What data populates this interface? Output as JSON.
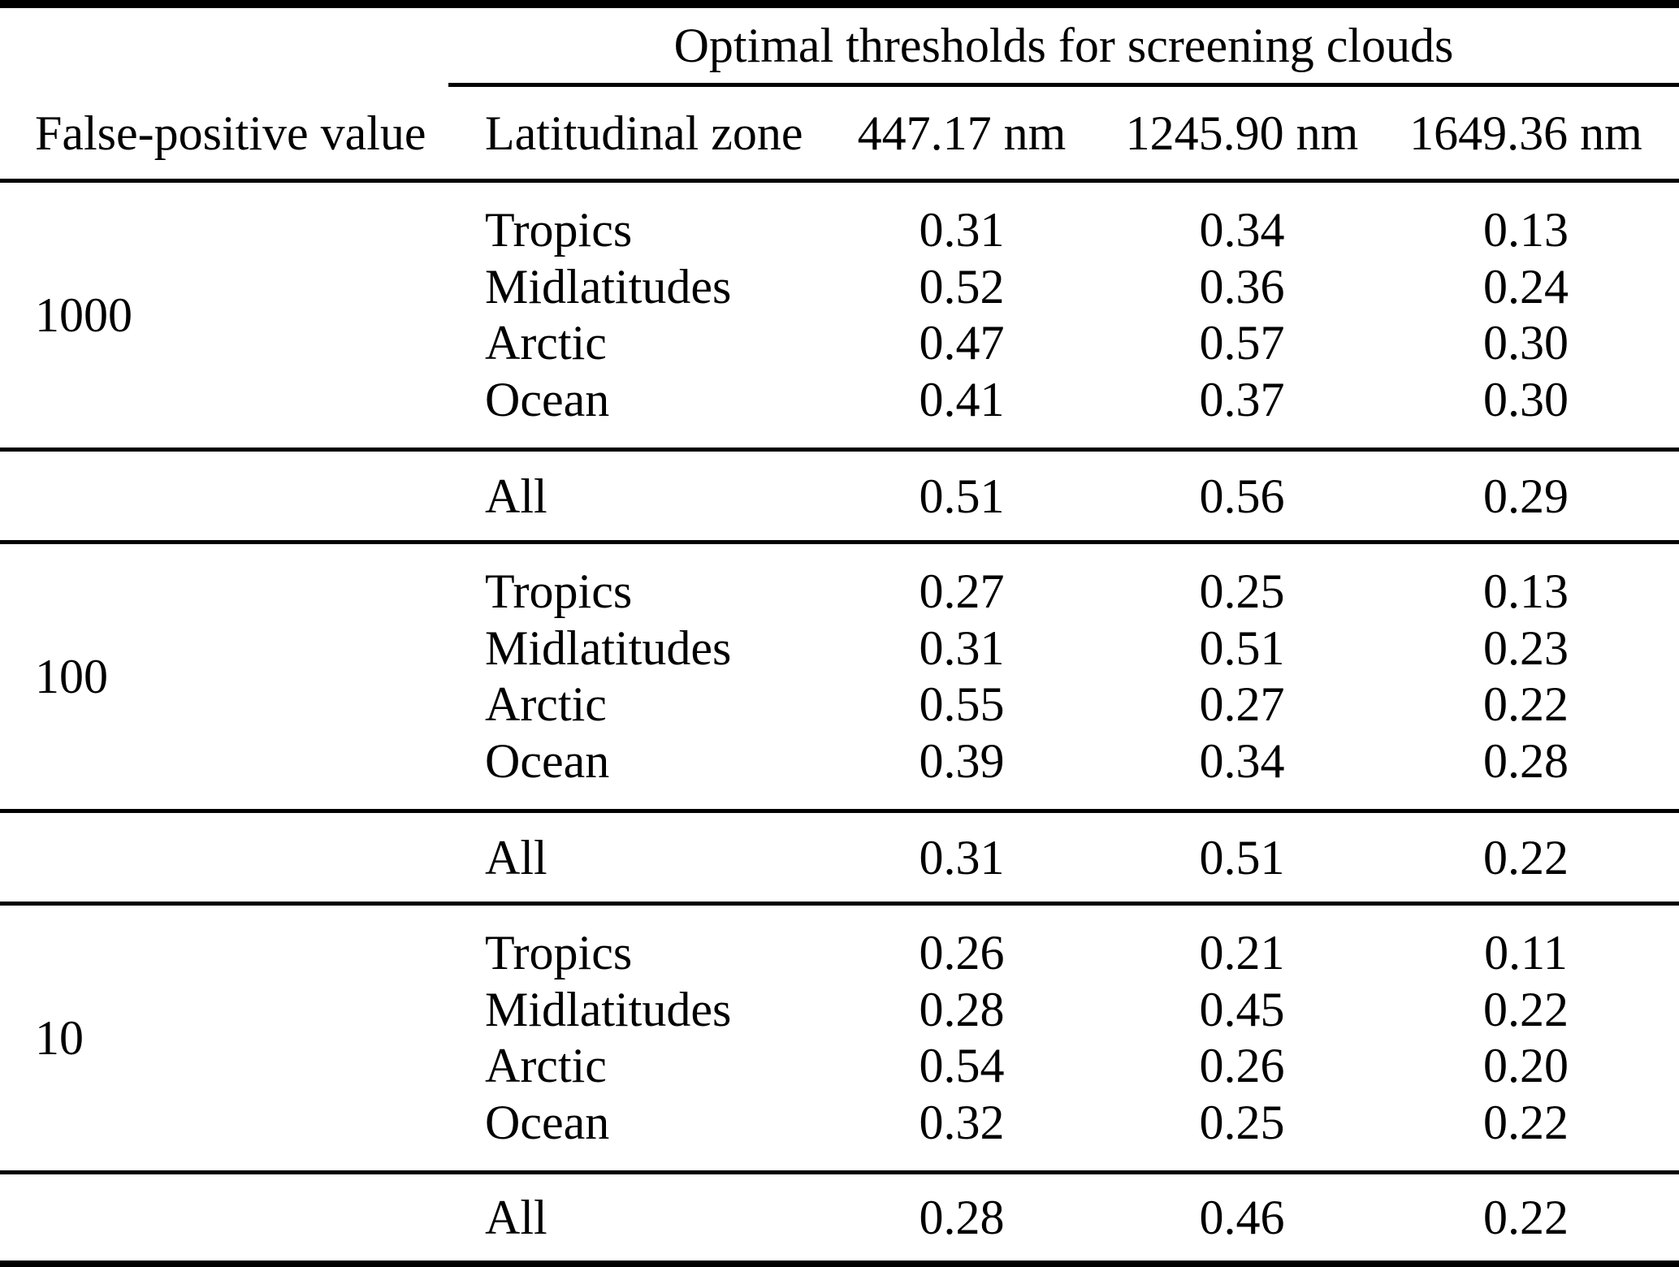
{
  "table": {
    "span_header": "Optimal thresholds for screening clouds",
    "columns": {
      "false_positive": "False-positive value",
      "zone": "Latitudinal zone",
      "wl1": "447.17 nm",
      "wl2": "1245.90 nm",
      "wl3": "1649.36 nm"
    },
    "groups": [
      {
        "false_positive_value": "1000",
        "rows": [
          {
            "zone": "Tropics",
            "v1": "0.31",
            "v2": "0.34",
            "v3": "0.13"
          },
          {
            "zone": "Midlatitudes",
            "v1": "0.52",
            "v2": "0.36",
            "v3": "0.24"
          },
          {
            "zone": "Arctic",
            "v1": "0.47",
            "v2": "0.57",
            "v3": "0.30"
          },
          {
            "zone": "Ocean",
            "v1": "0.41",
            "v2": "0.37",
            "v3": "0.30"
          }
        ],
        "all": {
          "zone": "All",
          "v1": "0.51",
          "v2": "0.56",
          "v3": "0.29"
        }
      },
      {
        "false_positive_value": "100",
        "rows": [
          {
            "zone": "Tropics",
            "v1": "0.27",
            "v2": "0.25",
            "v3": "0.13"
          },
          {
            "zone": "Midlatitudes",
            "v1": "0.31",
            "v2": "0.51",
            "v3": "0.23"
          },
          {
            "zone": "Arctic",
            "v1": "0.55",
            "v2": "0.27",
            "v3": "0.22"
          },
          {
            "zone": "Ocean",
            "v1": "0.39",
            "v2": "0.34",
            "v3": "0.28"
          }
        ],
        "all": {
          "zone": "All",
          "v1": "0.31",
          "v2": "0.51",
          "v3": "0.22"
        }
      },
      {
        "false_positive_value": "10",
        "rows": [
          {
            "zone": "Tropics",
            "v1": "0.26",
            "v2": "0.21",
            "v3": "0.11"
          },
          {
            "zone": "Midlatitudes",
            "v1": "0.28",
            "v2": "0.45",
            "v3": "0.22"
          },
          {
            "zone": "Arctic",
            "v1": "0.54",
            "v2": "0.26",
            "v3": "0.20"
          },
          {
            "zone": "Ocean",
            "v1": "0.32",
            "v2": "0.25",
            "v3": "0.22"
          }
        ],
        "all": {
          "zone": "All",
          "v1": "0.28",
          "v2": "0.46",
          "v3": "0.22"
        }
      }
    ],
    "colors": {
      "text": "#000000",
      "background": "#ffffff",
      "rule": "#000000"
    }
  }
}
